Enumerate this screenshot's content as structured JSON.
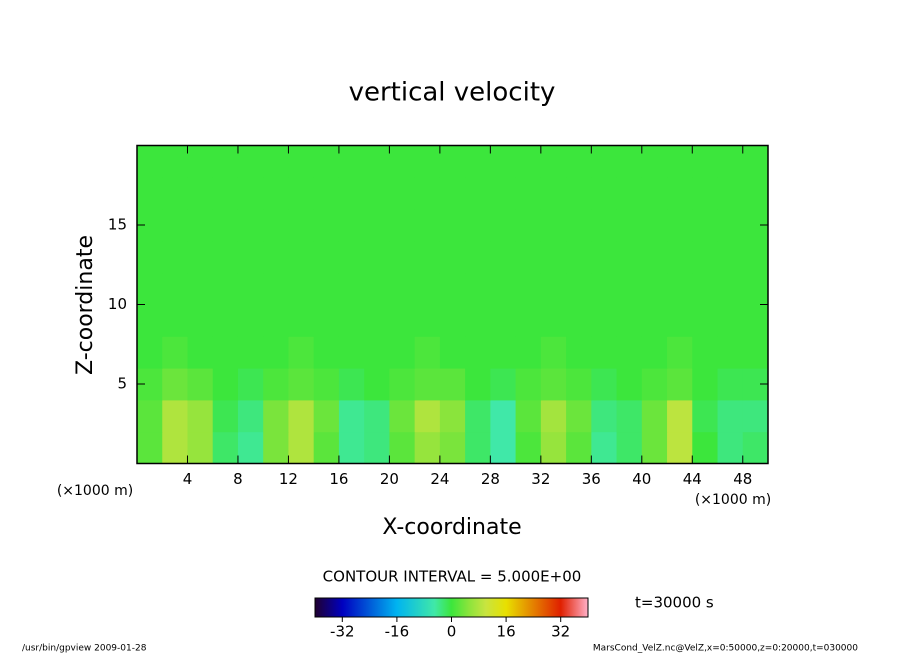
{
  "chart_data": {
    "type": "heatmap",
    "title": "vertical velocity",
    "xlabel": "X-coordinate",
    "ylabel": "Z-coordinate",
    "xunit": "(×1000 m)",
    "yunit": "(×1000 m)",
    "xlim": [
      0,
      50
    ],
    "ylim": [
      0,
      20
    ],
    "xticks": [
      4,
      8,
      12,
      16,
      20,
      24,
      28,
      32,
      36,
      40,
      44,
      48
    ],
    "yticks": [
      5,
      10,
      15
    ],
    "x": [
      1,
      3,
      5,
      7,
      9,
      11,
      13,
      15,
      17,
      19,
      21,
      23,
      25,
      27,
      29,
      31,
      33,
      35,
      37,
      39,
      41,
      43,
      45,
      47,
      49
    ],
    "z": [
      1,
      3,
      5,
      7,
      9,
      11,
      13,
      15,
      17,
      19
    ],
    "values": [
      [
        2,
        8,
        6,
        -2,
        -4,
        4,
        8,
        2,
        -4,
        -3,
        2,
        6,
        4,
        -2,
        -5,
        1,
        6,
        2,
        -4,
        -2,
        3,
        9,
        0,
        -3,
        -2
      ],
      [
        2,
        8,
        6,
        -1,
        -3,
        4,
        8,
        3,
        -4,
        -3,
        3,
        8,
        5,
        -2,
        -5,
        2,
        7,
        3,
        -3,
        -2,
        3,
        9,
        -1,
        -3,
        -3
      ],
      [
        1,
        3,
        2,
        0,
        -1,
        1,
        2,
        1,
        -1,
        0,
        1,
        2,
        2,
        0,
        -1,
        1,
        2,
        1,
        -1,
        0,
        1,
        2,
        0,
        -1,
        -1
      ],
      [
        0,
        1,
        0,
        0,
        0,
        0,
        1,
        0,
        0,
        0,
        0,
        1,
        0,
        0,
        0,
        0,
        1,
        0,
        0,
        0,
        0,
        1,
        0,
        0,
        0
      ],
      [
        0,
        0,
        0,
        0,
        0,
        0,
        0,
        0,
        0,
        0,
        0,
        0,
        0,
        0,
        0,
        0,
        0,
        0,
        0,
        0,
        0,
        0,
        0,
        0,
        0
      ],
      [
        0,
        0,
        0,
        0,
        0,
        0,
        0,
        0,
        0,
        0,
        0,
        0,
        0,
        0,
        0,
        0,
        0,
        0,
        0,
        0,
        0,
        0,
        0,
        0,
        0
      ],
      [
        0,
        0,
        0,
        0,
        0,
        0,
        0,
        0,
        0,
        0,
        0,
        0,
        0,
        0,
        0,
        0,
        0,
        0,
        0,
        0,
        0,
        0,
        0,
        0,
        0
      ],
      [
        0,
        0,
        0,
        0,
        0,
        0,
        0,
        0,
        0,
        0,
        0,
        0,
        0,
        0,
        0,
        0,
        0,
        0,
        0,
        0,
        0,
        0,
        0,
        0,
        0
      ],
      [
        0,
        0,
        0,
        0,
        0,
        0,
        0,
        0,
        0,
        0,
        0,
        0,
        0,
        0,
        0,
        0,
        0,
        0,
        0,
        0,
        0,
        0,
        0,
        0,
        0
      ],
      [
        0,
        0,
        0,
        0,
        0,
        0,
        0,
        0,
        0,
        0,
        0,
        0,
        0,
        0,
        0,
        0,
        0,
        0,
        0,
        0,
        0,
        0,
        0,
        0,
        0
      ]
    ],
    "colormap": [
      {
        "value": -40,
        "color": "#200030"
      },
      {
        "value": -32,
        "color": "#0000c0"
      },
      {
        "value": -16,
        "color": "#00b4f0"
      },
      {
        "value": -5,
        "color": "#40e8a8"
      },
      {
        "value": 0,
        "color": "#3ce63c"
      },
      {
        "value": 5,
        "color": "#8ae43c"
      },
      {
        "value": 10,
        "color": "#c8e440"
      },
      {
        "value": 16,
        "color": "#e8e000"
      },
      {
        "value": 32,
        "color": "#e02000"
      },
      {
        "value": 40,
        "color": "#ffb0c8"
      }
    ],
    "colorbar_ticks": [
      -32,
      -16,
      0,
      16,
      32
    ],
    "contour_interval": "CONTOUR INTERVAL = 5.000E+00",
    "time": "t=30000 s",
    "footer_left": "/usr/bin/gpview  2009-01-28",
    "footer_right": "MarsCond_VelZ.nc@VelZ,x=0:50000,z=0:20000,t=030000"
  }
}
